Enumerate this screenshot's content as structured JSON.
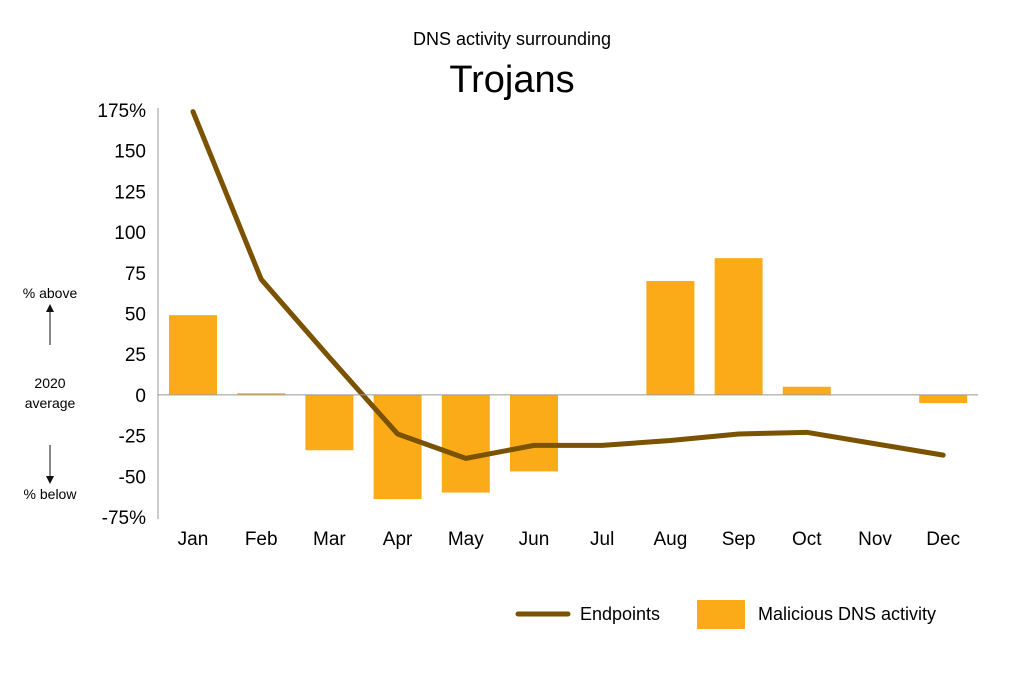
{
  "chart_data": {
    "type": "bar",
    "subtitle": "DNS activity surrounding",
    "title": "Trojans",
    "categories": [
      "Jan",
      "Feb",
      "Mar",
      "Apr",
      "May",
      "Jun",
      "Jul",
      "Aug",
      "Sep",
      "Oct",
      "Nov",
      "Dec"
    ],
    "ylim": [
      -75,
      175
    ],
    "yticks": [
      175,
      150,
      125,
      100,
      75,
      50,
      25,
      0,
      -25,
      -50,
      -75
    ],
    "ytick_labels": [
      "175%",
      "150",
      "125",
      "100",
      "75",
      "50",
      "25",
      "0",
      "-25",
      "-50",
      "-75%"
    ],
    "y_annotations": {
      "above": "% above",
      "baseline_line1": "2020",
      "baseline_line2": "average",
      "below": "% below"
    },
    "grid": false,
    "legend_position": "bottom-right",
    "series": [
      {
        "name": "Endpoints",
        "type": "line",
        "color": "#7a5200",
        "values": [
          174,
          71,
          23,
          -24,
          -39,
          -31,
          -31,
          -28,
          -24,
          -23,
          -30,
          -37
        ]
      },
      {
        "name": "Malicious DNS activity",
        "type": "bar",
        "color": "#fbab18",
        "values": [
          49,
          1,
          -34,
          -64,
          -60,
          -47,
          0,
          70,
          84,
          5,
          0,
          -5
        ]
      }
    ]
  }
}
